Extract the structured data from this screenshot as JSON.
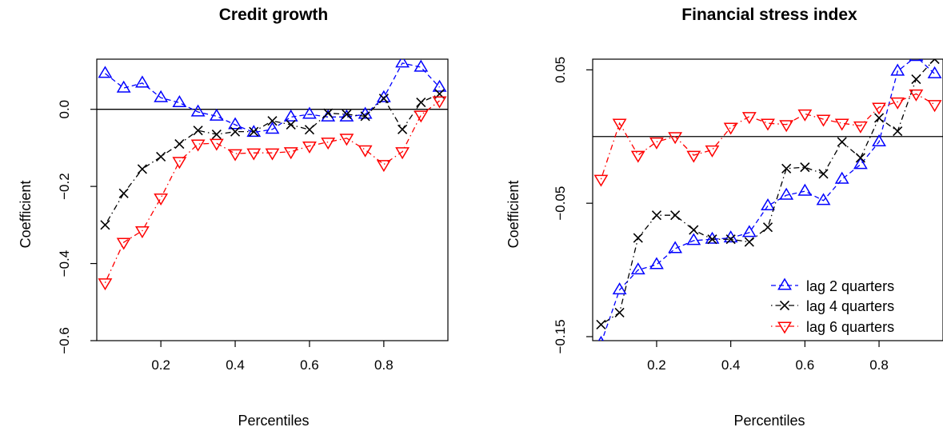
{
  "chart_data": [
    {
      "type": "line",
      "title": "Credit growth",
      "xlabel": "Percentiles",
      "ylabel": "Coefficient",
      "xlim": [
        0.0275,
        0.9725
      ],
      "ylim": [
        -0.6,
        0.13
      ],
      "xticks": [
        0.2,
        0.4,
        0.6,
        0.8
      ],
      "yticks": [
        -0.6,
        -0.4,
        -0.2,
        0.0
      ],
      "xtick_labels": [
        "0.2",
        "0.4",
        "0.6",
        "0.8"
      ],
      "ytick_labels": [
        "−0.6",
        "−0.4",
        "−0.2",
        "0.0"
      ],
      "hline": 0,
      "x": [
        0.05,
        0.1,
        0.15,
        0.2,
        0.25,
        0.3,
        0.35,
        0.4,
        0.45,
        0.5,
        0.55,
        0.6,
        0.65,
        0.7,
        0.75,
        0.8,
        0.85,
        0.9,
        0.95
      ],
      "series": [
        {
          "marker": "triangle-up",
          "dash": "dashed",
          "color": "#0000ff",
          "values": [
            0.093,
            0.055,
            0.068,
            0.03,
            0.017,
            -0.007,
            -0.018,
            -0.04,
            -0.06,
            -0.052,
            -0.02,
            -0.013,
            -0.02,
            -0.02,
            -0.013,
            0.03,
            0.12,
            0.109,
            0.057
          ]
        },
        {
          "marker": "cross",
          "dash": "dotdash",
          "color": "#000000",
          "values": [
            -0.3,
            -0.218,
            -0.155,
            -0.123,
            -0.09,
            -0.055,
            -0.065,
            -0.058,
            -0.058,
            -0.03,
            -0.04,
            -0.053,
            -0.01,
            -0.013,
            -0.018,
            0.028,
            -0.052,
            0.018,
            0.04
          ]
        },
        {
          "marker": "triangle-down",
          "dash": "dotdash",
          "color": "#ff0000",
          "values": [
            -0.45,
            -0.345,
            -0.315,
            -0.23,
            -0.135,
            -0.09,
            -0.088,
            -0.115,
            -0.113,
            -0.113,
            -0.11,
            -0.095,
            -0.085,
            -0.075,
            -0.105,
            -0.143,
            -0.11,
            -0.015,
            0.022
          ]
        }
      ]
    },
    {
      "type": "line",
      "title": "Financial stress index",
      "xlabel": "Percentiles",
      "ylabel": "Coefficient",
      "xlim": [
        0.0275,
        0.9725
      ],
      "ylim": [
        -0.153,
        0.058
      ],
      "xticks": [
        0.2,
        0.4,
        0.6,
        0.8
      ],
      "yticks": [
        -0.15,
        -0.05,
        0.05
      ],
      "xtick_labels": [
        "0.2",
        "0.4",
        "0.6",
        "0.8"
      ],
      "ytick_labels": [
        "−0.15",
        "−0.05",
        "0.05"
      ],
      "hline": 0,
      "x": [
        0.05,
        0.1,
        0.15,
        0.2,
        0.25,
        0.3,
        0.35,
        0.4,
        0.45,
        0.5,
        0.55,
        0.6,
        0.65,
        0.7,
        0.75,
        0.8,
        0.85,
        0.9,
        0.95
      ],
      "series": [
        {
          "name": "lag 2 quarters",
          "marker": "triangle-up",
          "dash": "dashed",
          "color": "#0000ff",
          "values": [
            -0.155,
            -0.115,
            -0.1,
            -0.096,
            -0.084,
            -0.078,
            -0.077,
            -0.076,
            -0.072,
            -0.052,
            -0.044,
            -0.041,
            -0.048,
            -0.032,
            -0.021,
            -0.004,
            0.049,
            0.06,
            0.047
          ]
        },
        {
          "name": "lag 4 quarters",
          "marker": "cross",
          "dash": "dotdash",
          "color": "#000000",
          "values": [
            -0.141,
            -0.132,
            -0.076,
            -0.059,
            -0.059,
            -0.07,
            -0.077,
            -0.077,
            -0.079,
            -0.068,
            -0.024,
            -0.023,
            -0.028,
            -0.004,
            -0.016,
            0.014,
            0.004,
            0.043,
            0.058
          ]
        },
        {
          "name": "lag 6 quarters",
          "marker": "triangle-down",
          "dash": "dotdash",
          "color": "#ff0000",
          "values": [
            -0.032,
            0.01,
            -0.014,
            -0.004,
            0.0,
            -0.014,
            -0.01,
            0.007,
            0.015,
            0.01,
            0.009,
            0.017,
            0.013,
            0.01,
            0.008,
            0.022,
            0.026,
            0.032,
            0.024
          ]
        }
      ]
    }
  ]
}
